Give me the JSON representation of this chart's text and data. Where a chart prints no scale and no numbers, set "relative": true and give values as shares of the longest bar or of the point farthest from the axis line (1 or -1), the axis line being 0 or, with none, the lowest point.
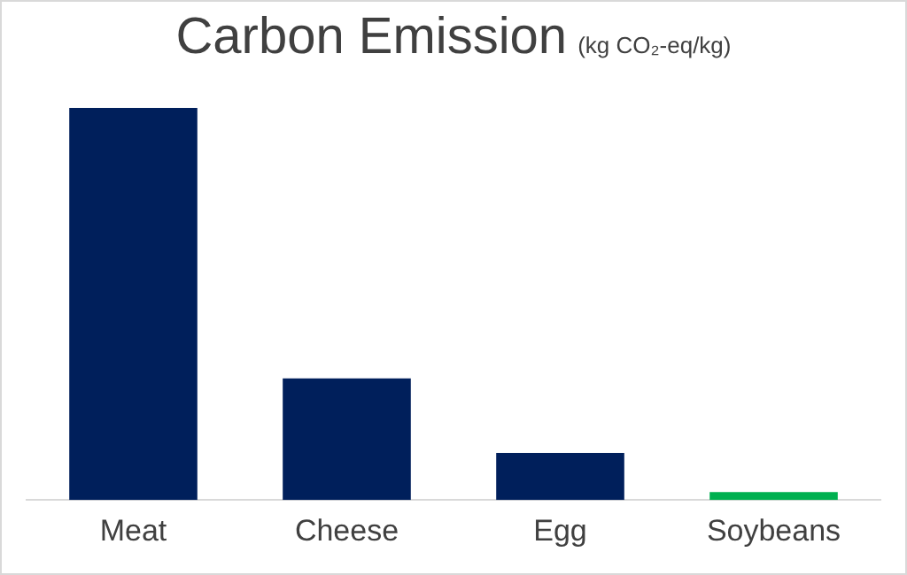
{
  "chart_data": {
    "type": "bar",
    "title": "Carbon Emission",
    "subtitle": "(kg CO₂-eq/kg)",
    "categories": [
      "Meat",
      "Cheese",
      "Egg",
      "Soybeans"
    ],
    "values": [
      1,
      0.31,
      0.12,
      0.02
    ],
    "colors": [
      "#001f5b",
      "#001f5b",
      "#001f5b",
      "#00b050"
    ],
    "relative": true,
    "grid": false,
    "legend": false
  }
}
